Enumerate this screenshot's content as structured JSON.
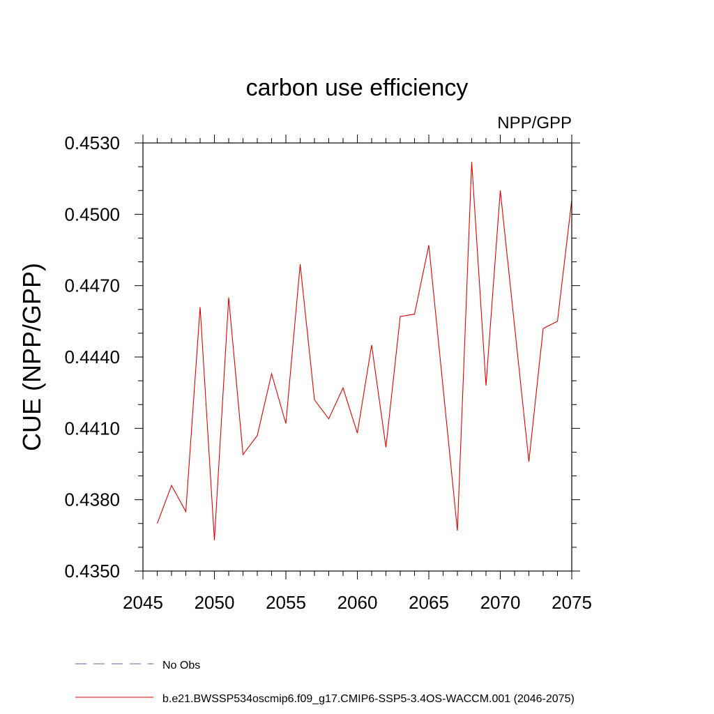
{
  "chart_data": {
    "type": "line",
    "title": "carbon use efficiency",
    "subtitle": "NPP/GPP",
    "ylabel": "CUE  (NPP/GPP)",
    "xlabel": "",
    "xlim": [
      2045,
      2075
    ],
    "ylim": [
      0.435,
      0.453
    ],
    "xticks": [
      "2045",
      "2050",
      "2055",
      "2060",
      "2065",
      "2070",
      "2075"
    ],
    "yticks": [
      "0.4350",
      "0.4380",
      "0.4410",
      "0.4440",
      "0.4470",
      "0.4500",
      "0.4530"
    ],
    "grid": false,
    "legend_position": "bottom",
    "series": [
      {
        "name": "b.e21.BWSSP534oscmip6.f09_g17.CMIP6-SSP5-3.4OS-WACCM.001 (2046-2075)",
        "color": "#e00000",
        "style": "solid",
        "x": [
          2046,
          2047,
          2048,
          2049,
          2050,
          2051,
          2052,
          2053,
          2054,
          2055,
          2056,
          2057,
          2058,
          2059,
          2060,
          2061,
          2062,
          2063,
          2064,
          2065,
          2066,
          2067,
          2068,
          2069,
          2070,
          2071,
          2072,
          2073,
          2074,
          2075
        ],
        "values": [
          0.437,
          0.4386,
          0.4375,
          0.4461,
          0.4363,
          0.4465,
          0.4399,
          0.4407,
          0.4433,
          0.4412,
          0.4479,
          0.4422,
          0.4414,
          0.4427,
          0.4408,
          0.4445,
          0.4402,
          0.4457,
          0.4458,
          0.4487,
          0.4427,
          0.4367,
          0.4522,
          0.4428,
          0.451,
          0.4453,
          0.4396,
          0.4452,
          0.4455,
          0.4506
        ]
      },
      {
        "name": "No Obs",
        "color": "#6a5aa8",
        "style": "dashed",
        "x": [],
        "values": []
      }
    ]
  }
}
